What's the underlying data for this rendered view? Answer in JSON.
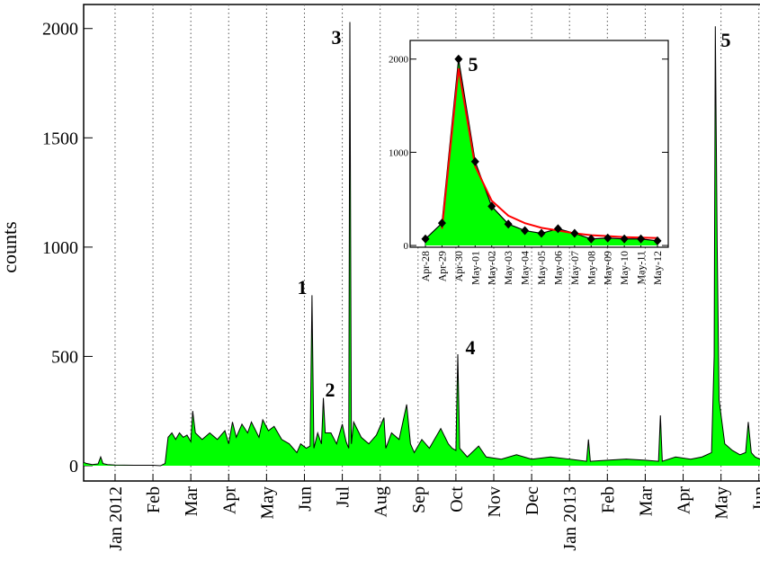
{
  "chart_data": [
    {
      "type": "area",
      "ylabel": "counts",
      "color": "#00ff00",
      "line_color": "#000000",
      "grid": "x-dotted",
      "xlim": [
        -0.83,
        17.03
      ],
      "ylim": [
        -70,
        2110
      ],
      "yticks": [
        0,
        500,
        1000,
        1500,
        2000
      ],
      "xticks": [
        {
          "value": 0,
          "label": "Jan 2012"
        },
        {
          "value": 1,
          "label": "Feb"
        },
        {
          "value": 2,
          "label": "Mar"
        },
        {
          "value": 3,
          "label": "Apr"
        },
        {
          "value": 4,
          "label": "May"
        },
        {
          "value": 5,
          "label": "Jun"
        },
        {
          "value": 6,
          "label": "Jul"
        },
        {
          "value": 7,
          "label": "Aug"
        },
        {
          "value": 8,
          "label": "Sep"
        },
        {
          "value": 9,
          "label": "Oct"
        },
        {
          "value": 10,
          "label": "Nov"
        },
        {
          "value": 11,
          "label": "Dec"
        },
        {
          "value": 12,
          "label": "Jan 2013"
        },
        {
          "value": 13,
          "label": "Feb"
        },
        {
          "value": 14,
          "label": "Mar"
        },
        {
          "value": 15,
          "label": "Apr"
        },
        {
          "value": 16,
          "label": "May"
        },
        {
          "value": 17,
          "label": "Jun"
        }
      ],
      "x": [
        -0.83,
        -0.75,
        -0.6,
        -0.45,
        -0.38,
        -0.32,
        -0.2,
        0,
        0.5,
        1,
        1.2,
        1.32,
        1.4,
        1.5,
        1.6,
        1.7,
        1.8,
        1.9,
        2.0,
        2.05,
        2.12,
        2.3,
        2.5,
        2.7,
        2.9,
        3.0,
        3.1,
        3.2,
        3.35,
        3.5,
        3.6,
        3.8,
        3.9,
        4.05,
        4.2,
        4.4,
        4.6,
        4.8,
        4.9,
        5.05,
        5.15,
        5.2,
        5.25,
        5.35,
        5.45,
        5.5,
        5.55,
        5.7,
        5.85,
        6.0,
        6.1,
        6.17,
        6.2,
        6.24,
        6.3,
        6.5,
        6.7,
        6.9,
        7.1,
        7.15,
        7.3,
        7.5,
        7.7,
        7.8,
        7.9,
        8.1,
        8.3,
        8.6,
        8.8,
        8.9,
        9.0,
        9.05,
        9.1,
        9.3,
        9.6,
        9.8,
        10.2,
        10.6,
        11,
        11.5,
        12,
        12.45,
        12.5,
        12.55,
        13,
        13.5,
        14,
        14.35,
        14.4,
        14.45,
        14.8,
        15.2,
        15.5,
        15.75,
        15.82,
        15.85,
        15.9,
        15.95,
        16.1,
        16.3,
        16.5,
        16.65,
        16.72,
        16.8,
        16.9,
        17.03
      ],
      "values": [
        15,
        10,
        5,
        8,
        40,
        10,
        5,
        3,
        2,
        2,
        0,
        10,
        130,
        150,
        120,
        150,
        130,
        140,
        110,
        250,
        150,
        120,
        150,
        120,
        160,
        100,
        200,
        130,
        190,
        150,
        200,
        130,
        210,
        160,
        180,
        120,
        100,
        60,
        100,
        80,
        90,
        780,
        80,
        150,
        100,
        310,
        150,
        150,
        100,
        190,
        110,
        80,
        2030,
        100,
        200,
        130,
        100,
        140,
        220,
        80,
        150,
        120,
        280,
        100,
        60,
        120,
        80,
        170,
        100,
        80,
        70,
        510,
        80,
        40,
        90,
        40,
        30,
        50,
        30,
        40,
        30,
        20,
        120,
        20,
        25,
        30,
        25,
        20,
        230,
        20,
        40,
        30,
        40,
        60,
        500,
        2010,
        1000,
        300,
        100,
        70,
        50,
        60,
        200,
        60,
        40,
        30
      ],
      "annotations": [
        {
          "text": "1"
        },
        {
          "text": "2"
        },
        {
          "text": "3"
        },
        {
          "text": "4"
        },
        {
          "text": "5"
        }
      ]
    },
    {
      "type": "area",
      "color": "#00ff00",
      "line_color": "#000000",
      "categories": [
        "Apr-28",
        "Apr-29",
        "Apr-30",
        "May-01",
        "May-02",
        "May-03",
        "May-04",
        "May-05",
        "May-06",
        "May-07",
        "May-08",
        "May-09",
        "May-10",
        "May-11",
        "May-12"
      ],
      "ylim": [
        -19,
        2200
      ],
      "yticks": [
        0,
        1000,
        2000
      ],
      "series": [
        {
          "color": "#000000",
          "values": [
            70,
            240,
            2000,
            900,
            420,
            230,
            160,
            130,
            180,
            130,
            70,
            80,
            70,
            70,
            50
          ]
        },
        {
          "color": "#ff0000",
          "values": [
            null,
            180,
            1900,
            850,
            480,
            320,
            240,
            190,
            160,
            130,
            110,
            100,
            90,
            85,
            80
          ]
        }
      ],
      "annotations": [
        {
          "text": "5"
        }
      ]
    }
  ]
}
